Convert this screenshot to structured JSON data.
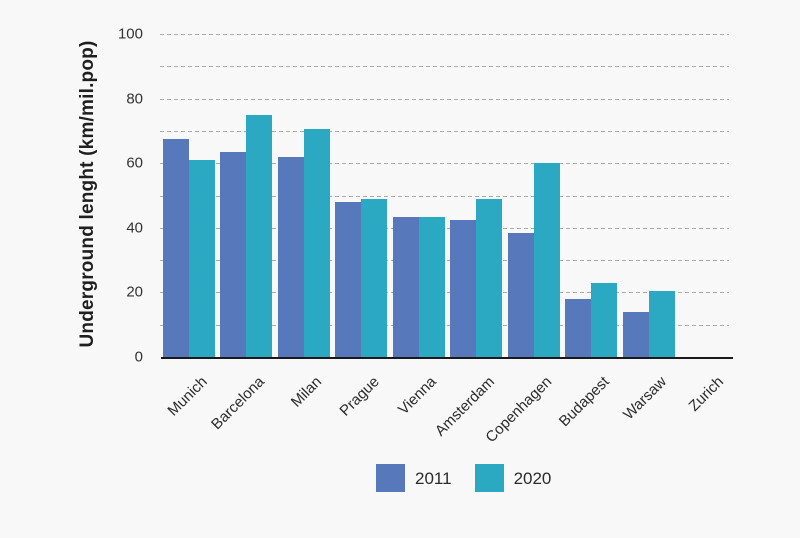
{
  "page": {
    "background": "#f8f8f8"
  },
  "chart_data": {
    "type": "bar",
    "title": "",
    "xlabel": "",
    "ylabel": "Underground lenght (km/mil.pop)",
    "categories": [
      "Munich",
      "Barcelona",
      "Milan",
      "Prague",
      "Vienna",
      "Amsterdam",
      "Copenhagen",
      "Budapest",
      "Warsaw",
      "Zurich"
    ],
    "series": [
      {
        "name": "2011",
        "color": "#5878BC",
        "values": [
          67.5,
          63.5,
          62,
          48,
          43.5,
          42.5,
          38.5,
          18,
          14,
          0
        ]
      },
      {
        "name": "2020",
        "color": "#2BA8C2",
        "values": [
          61,
          75,
          70.5,
          49,
          43.5,
          49,
          60,
          23,
          20.5,
          0
        ]
      }
    ],
    "ylim": [
      0,
      100
    ],
    "ytick_minor_step": 10,
    "ytick_labeled": [
      0,
      20,
      40,
      60,
      80,
      100
    ],
    "grid": "horizontal-dashed",
    "grid_color": "#ababab",
    "axis_color": "#1a1a1a",
    "text_color": "#333333",
    "legend_position": "bottom"
  }
}
